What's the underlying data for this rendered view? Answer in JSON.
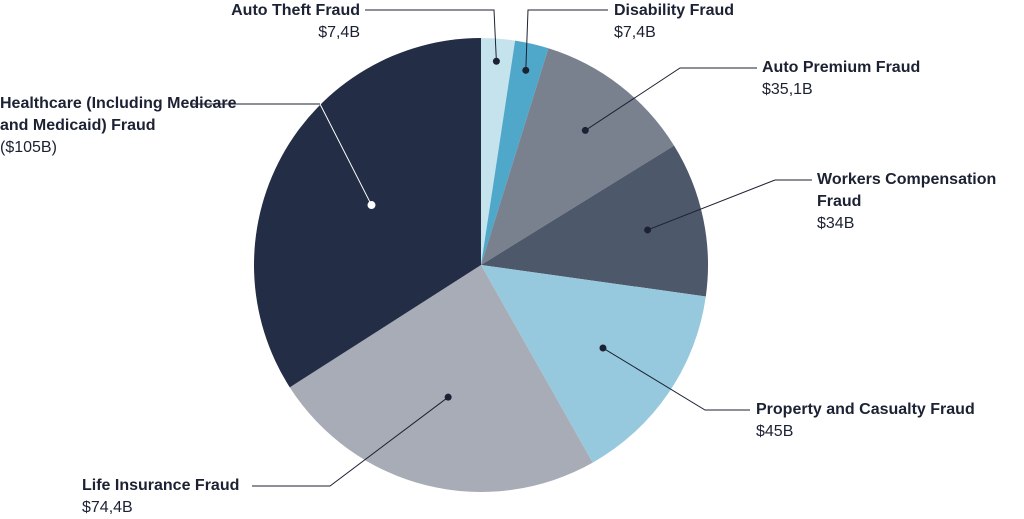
{
  "chart_data": {
    "type": "pie",
    "categories": [
      "Auto Theft Fraud",
      "Disability Fraud",
      "Auto Premium Fraud",
      "Workers Compensation Fraud",
      "Property and Casualty Fraud",
      "Life Insurance Fraud",
      "Healthcare (Including Medicare and Medicaid) Fraud"
    ],
    "values": [
      7.4,
      7.4,
      35.1,
      34,
      45,
      74.4,
      105
    ],
    "value_labels": [
      "$7,4B",
      "$7,4B",
      "$35,1B",
      "$34B",
      "$45B",
      "$74,4B",
      "($105B)"
    ],
    "colors": [
      "#c5e3ec",
      "#4fa7c9",
      "#7a818e",
      "#4e586b",
      "#97c9de",
      "#a8acb6",
      "#232d45"
    ]
  }
}
